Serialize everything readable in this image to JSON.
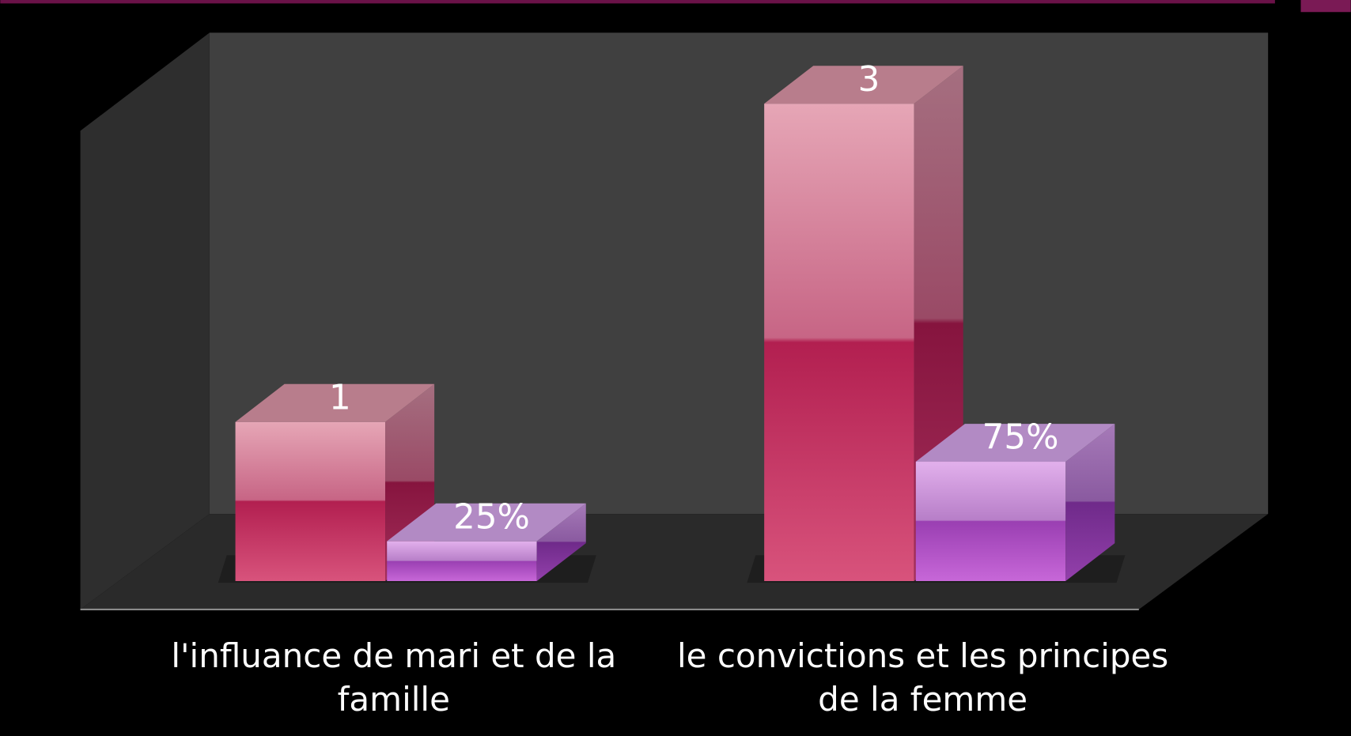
{
  "chart_data": {
    "type": "bar3d",
    "categories": [
      "l'influance de mari et de la famille",
      "le convictions et les principes de la femme"
    ],
    "series": [
      {
        "color": "#c43063",
        "values": [
          1,
          3
        ]
      },
      {
        "color": "#a24ab8",
        "values": [
          0.25,
          0.75
        ],
        "value_labels": [
          "25%",
          "75%"
        ]
      }
    ],
    "ylim": [
      0,
      3.5
    ]
  }
}
